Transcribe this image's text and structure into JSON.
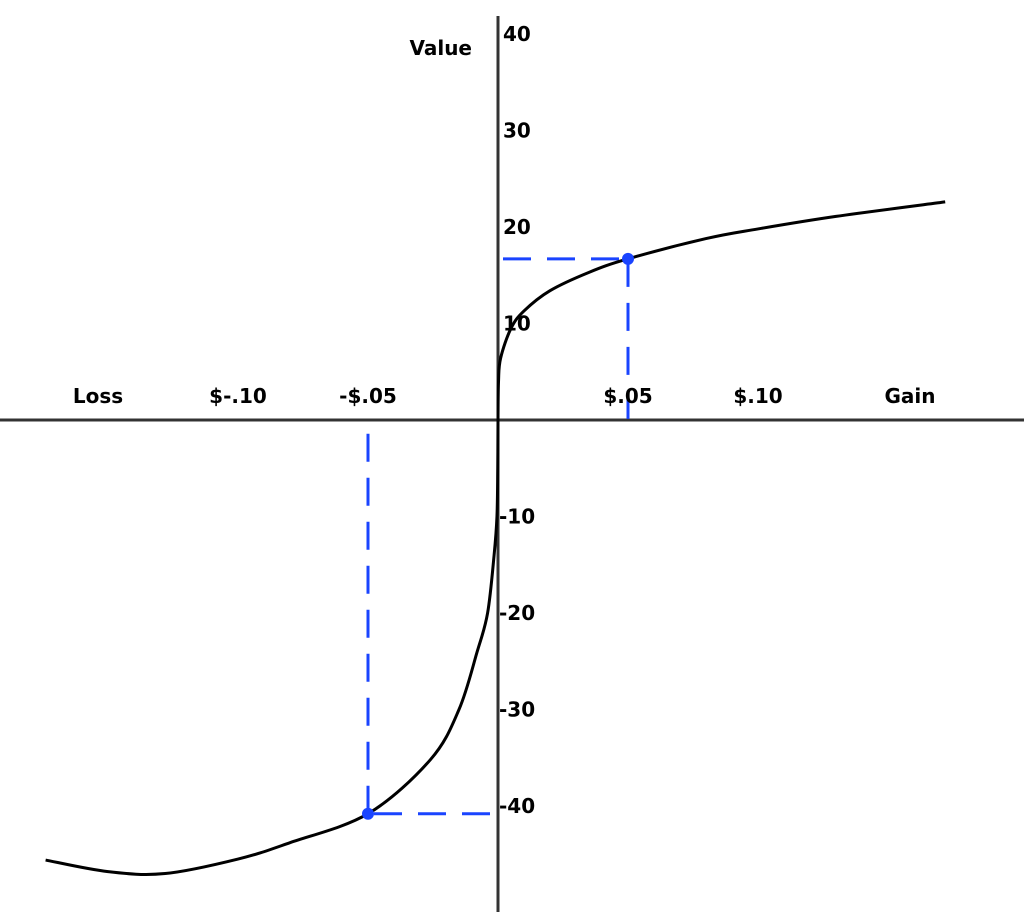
{
  "chart_data": {
    "type": "line",
    "ylabel": "Value",
    "x_left_label": "Loss",
    "x_right_label": "Gain",
    "x_ticks": [
      {
        "value": -0.1,
        "label": "$-.10"
      },
      {
        "value": -0.05,
        "label": "-$.05"
      },
      {
        "value": 0.05,
        "label": "$.05"
      },
      {
        "value": 0.1,
        "label": "$.10"
      }
    ],
    "y_ticks": [
      {
        "value": 40,
        "label": "40"
      },
      {
        "value": 30,
        "label": "30"
      },
      {
        "value": 20,
        "label": "20"
      },
      {
        "value": 10,
        "label": "10"
      },
      {
        "value": -10,
        "label": "-10"
      },
      {
        "value": -20,
        "label": "-20"
      },
      {
        "value": -30,
        "label": "-30"
      },
      {
        "value": -40,
        "label": "-40"
      }
    ],
    "xlim": [
      -0.19,
      0.2
    ],
    "ylim": [
      -50,
      42
    ],
    "grid": false,
    "series": [
      {
        "color": "#000000",
        "points": [
          [
            -0.174,
            -45.6
          ],
          [
            -0.15,
            -46.8
          ],
          [
            -0.128,
            -47.0
          ],
          [
            -0.1,
            -45.5
          ],
          [
            -0.08,
            -43.8
          ],
          [
            -0.05,
            -40.8
          ],
          [
            -0.026,
            -35.2
          ],
          [
            -0.015,
            -30
          ],
          [
            -0.008,
            -24
          ],
          [
            -0.004,
            -20
          ],
          [
            -0.0015,
            -14
          ],
          [
            -0.0004,
            -10
          ],
          [
            -0.0001,
            -5
          ],
          [
            0,
            0
          ],
          [
            0.0002,
            4
          ],
          [
            0.001,
            6.4
          ],
          [
            0.005,
            9.5
          ],
          [
            0.01,
            11.3
          ],
          [
            0.02,
            13.4
          ],
          [
            0.035,
            15.3
          ],
          [
            0.05,
            16.7
          ],
          [
            0.08,
            18.8
          ],
          [
            0.1,
            19.8
          ],
          [
            0.13,
            21.1
          ],
          [
            0.172,
            22.6
          ]
        ]
      }
    ],
    "highlights": {
      "color": "#1a44ff",
      "points": [
        [
          0.05,
          16.7
        ],
        [
          -0.05,
          -40.8
        ]
      ]
    }
  }
}
